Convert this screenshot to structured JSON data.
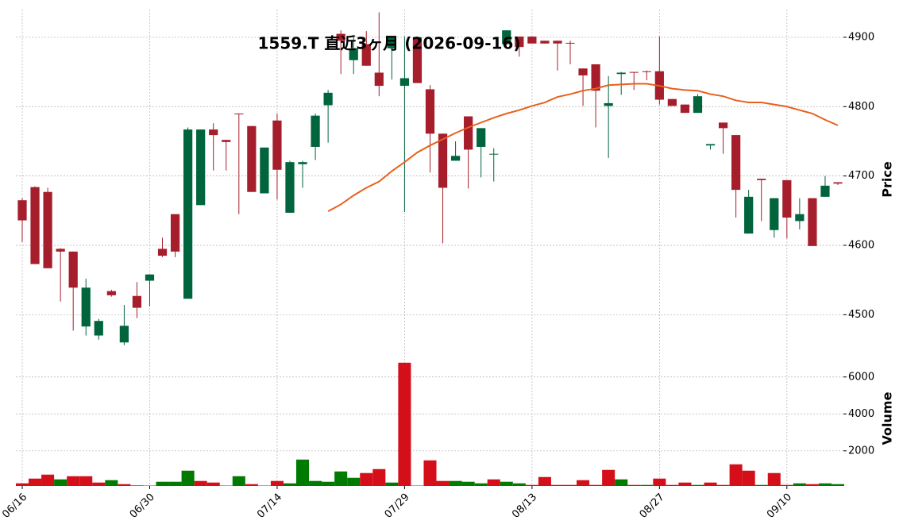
{
  "chart_data": {
    "type": "candlestick",
    "title": "1559.T  直近3ヶ月 (2026-09-16)",
    "categories": [
      "06/16",
      null,
      null,
      null,
      null,
      null,
      null,
      null,
      null,
      null,
      "06/30",
      null,
      null,
      null,
      null,
      null,
      null,
      null,
      null,
      null,
      "07/14",
      null,
      null,
      null,
      null,
      null,
      null,
      null,
      null,
      null,
      "07/29",
      null,
      null,
      null,
      null,
      null,
      null,
      null,
      null,
      null,
      "08/13",
      null,
      null,
      null,
      null,
      null,
      null,
      null,
      null,
      null,
      "08/27",
      null,
      null,
      null,
      null,
      null,
      null,
      null,
      null,
      null,
      "09/10",
      null,
      null,
      null,
      null
    ],
    "open": [
      4665,
      4684,
      4677,
      4595,
      4591,
      4483,
      4470,
      4534,
      4460,
      4527,
      4549,
      4595,
      4645,
      4523,
      4658,
      4767,
      4752,
      4790,
      4772,
      4675,
      4780,
      4647,
      4717,
      4742,
      4802,
      4905,
      4867,
      4890,
      4849,
      4884,
      4830,
      4900,
      4825,
      4761,
      4722,
      4786,
      4742,
      4731,
      4890,
      4901,
      4901,
      4895,
      4895,
      4892,
      4855,
      4861,
      4801,
      4847,
      4850,
      4851,
      4851,
      4811,
      4803,
      4791,
      4744,
      4777,
      4759,
      4617,
      4696,
      4622,
      4694,
      4635,
      4668,
      4670,
      4691
    ],
    "high": [
      4668,
      4685,
      4683,
      4596,
      4591,
      4552,
      4494,
      4536,
      4514,
      4547,
      4558,
      4611,
      4645,
      4770,
      4767,
      4776,
      4752,
      4790,
      4772,
      4741,
      4790,
      4722,
      4722,
      4790,
      4824,
      4910,
      4900,
      4909,
      4936,
      4901,
      4901,
      4901,
      4831,
      4761,
      4750,
      4786,
      4769,
      4740,
      4910,
      4901,
      4901,
      4895,
      4895,
      4895,
      4855,
      4861,
      4844,
      4850,
      4850,
      4852,
      4901,
      4811,
      4803,
      4818,
      4746,
      4777,
      4759,
      4680,
      4696,
      4668,
      4694,
      4668,
      4668,
      4700,
      4691
    ],
    "low": [
      4605,
      4573,
      4567,
      4519,
      4477,
      4470,
      4464,
      4526,
      4456,
      4495,
      4512,
      4583,
      4583,
      4523,
      4658,
      4708,
      4708,
      4645,
      4677,
      4675,
      4666,
      4647,
      4683,
      4723,
      4748,
      4847,
      4847,
      4859,
      4815,
      4839,
      4648,
      4834,
      4705,
      4603,
      4722,
      4682,
      4698,
      4692,
      4890,
      4872,
      4891,
      4891,
      4852,
      4861,
      4801,
      4770,
      4726,
      4817,
      4824,
      4838,
      4803,
      4801,
      4791,
      4791,
      4738,
      4732,
      4640,
      4617,
      4635,
      4611,
      4610,
      4623,
      4599,
      4670,
      4687
    ],
    "close": [
      4636,
      4573,
      4567,
      4591,
      4539,
      4539,
      4491,
      4528,
      4484,
      4510,
      4558,
      4585,
      4591,
      4767,
      4767,
      4759,
      4749,
      4789,
      4677,
      4741,
      4709,
      4720,
      4720,
      4787,
      4820,
      4895,
      4884,
      4859,
      4830,
      4900,
      4841,
      4834,
      4761,
      4683,
      4729,
      4738,
      4769,
      4732,
      4910,
      4886,
      4891,
      4891,
      4891,
      4891,
      4845,
      4823,
      4805,
      4849,
      4849,
      4850,
      4810,
      4801,
      4791,
      4815,
      4746,
      4769,
      4680,
      4670,
      4694,
      4668,
      4640,
      4645,
      4599,
      4686,
      4689
    ],
    "up_color": "#00643c",
    "down_color": "#a61e2b",
    "ma": {
      "color": "#e8601c",
      "values": [
        null,
        null,
        null,
        null,
        null,
        null,
        null,
        null,
        null,
        null,
        null,
        null,
        null,
        null,
        null,
        null,
        null,
        null,
        null,
        null,
        null,
        null,
        null,
        null,
        4649,
        4659,
        4672,
        4683,
        4692,
        4707,
        4720,
        4734,
        4744,
        4753,
        4762,
        4770,
        4777,
        4784,
        4790,
        4795,
        4801,
        4806,
        4814,
        4818,
        4823,
        4826,
        4831,
        4832,
        4833,
        4833,
        4830,
        4826,
        4824,
        4823,
        4818,
        4815,
        4809,
        4806,
        4806,
        4803,
        4800,
        4795,
        4790,
        4781,
        4773
      ]
    },
    "ylabel": "Price",
    "ylim": [
      4450,
      4940
    ],
    "yticks": [
      4500,
      4600,
      4700,
      4800,
      4900
    ],
    "grid": true,
    "volume": {
      "ylabel": "Volume",
      "values": [
        241,
        498,
        713,
        456,
        627,
        627,
        284,
        413,
        198,
        130,
        120,
        327,
        327,
        927,
        370,
        284,
        120,
        627,
        198,
        120,
        370,
        241,
        1528,
        370,
        327,
        885,
        541,
        799,
        1013,
        284,
        6772,
        120,
        1485,
        370,
        370,
        327,
        241,
        456,
        327,
        241,
        155,
        584,
        155,
        155,
        413,
        155,
        970,
        456,
        155,
        155,
        498,
        155,
        284,
        155,
        284,
        155,
        1271,
        927,
        155,
        799,
        155,
        241,
        198,
        241,
        198
      ],
      "colors": [
        "#d40f1a",
        "#d40f1a",
        "#d40f1a",
        "#007a00",
        "#d40f1a",
        "#d40f1a",
        "#d40f1a",
        "#007a00",
        "#d40f1a",
        "#007a00",
        "#007a00",
        "#007a00",
        "#007a00",
        "#007a00",
        "#d40f1a",
        "#d40f1a",
        "#d40f1a",
        "#007a00",
        "#d40f1a",
        "#007a00",
        "#d40f1a",
        "#007a00",
        "#007a00",
        "#007a00",
        "#007a00",
        "#007a00",
        "#007a00",
        "#d40f1a",
        "#d40f1a",
        "#007a00",
        "#d40f1a",
        "#d40f1a",
        "#d40f1a",
        "#d40f1a",
        "#007a00",
        "#007a00",
        "#007a00",
        "#d40f1a",
        "#007a00",
        "#007a00",
        "#d40f1a",
        "#d40f1a",
        "#d40f1a",
        "#d40f1a",
        "#d40f1a",
        "#d40f1a",
        "#d40f1a",
        "#007a00",
        "#d40f1a",
        "#007a00",
        "#d40f1a",
        "#d40f1a",
        "#d40f1a",
        "#007a00",
        "#d40f1a",
        "#d40f1a",
        "#d40f1a",
        "#d40f1a",
        "#007a00",
        "#d40f1a",
        "#d40f1a",
        "#007a00",
        "#d40f1a",
        "#007a00",
        "#007a00"
      ],
      "ylim": [
        100,
        7150
      ],
      "yticks": [
        2000,
        4000,
        6000
      ]
    }
  }
}
